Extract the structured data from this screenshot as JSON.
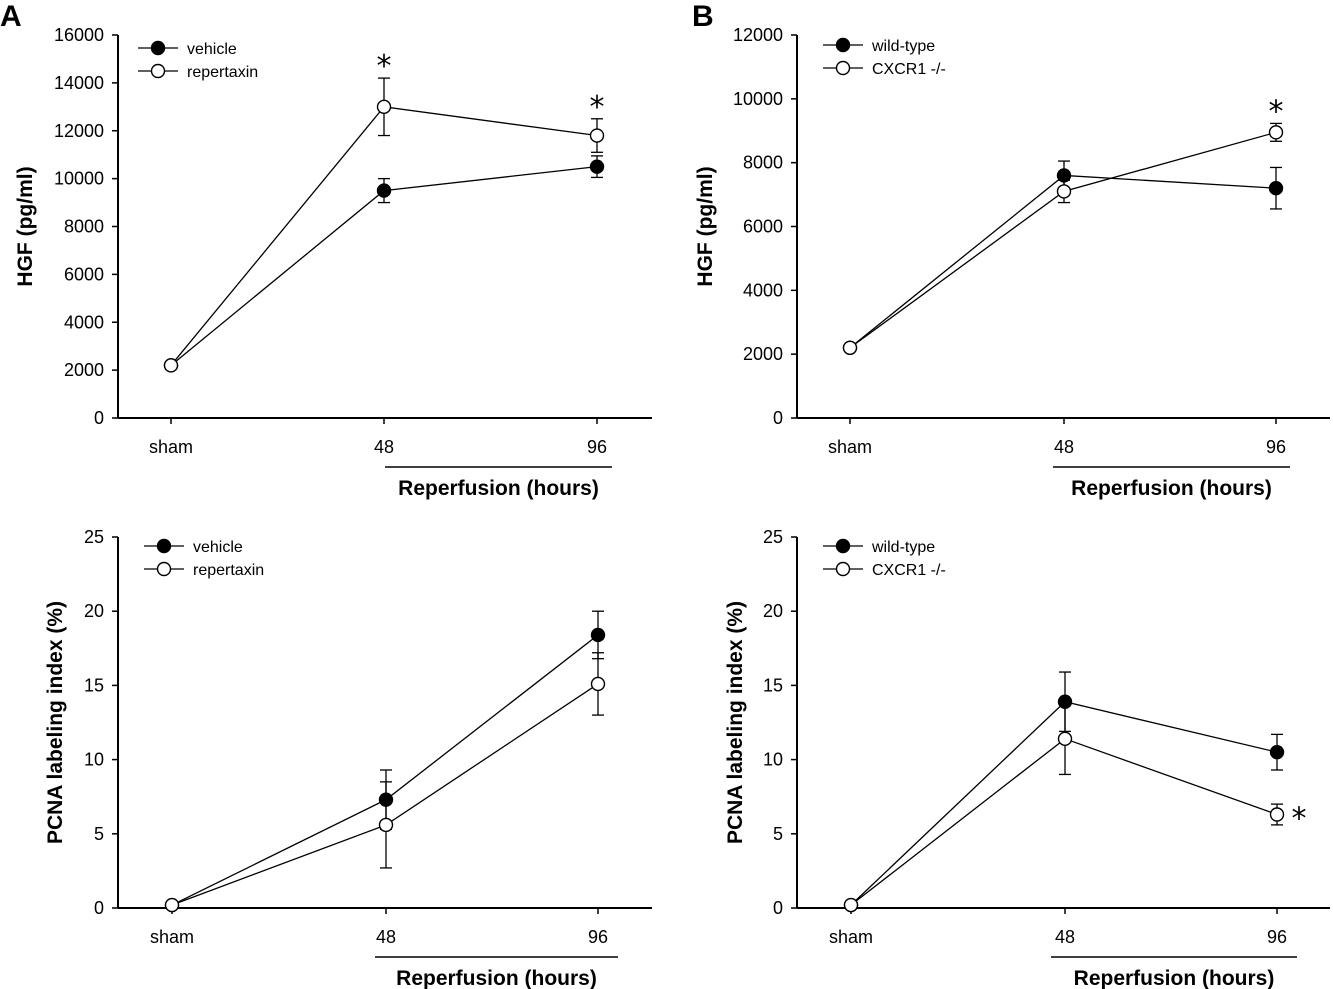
{
  "chart_data": [
    {
      "id": "A-top",
      "type": "line",
      "panel_label": "A",
      "categories": [
        "sham",
        "48",
        "96"
      ],
      "ylabel": "HGF (pg/ml)",
      "xgroup_label": "Reperfusion (hours)",
      "ylim": [
        0,
        16000
      ],
      "yticks": [
        0,
        2000,
        4000,
        6000,
        8000,
        10000,
        12000,
        14000,
        16000
      ],
      "series": [
        {
          "name": "vehicle",
          "marker": "filled",
          "values": [
            2200,
            9500,
            10500
          ],
          "errors": [
            0,
            500,
            450
          ]
        },
        {
          "name": "repertaxin",
          "marker": "open",
          "values": [
            2200,
            13000,
            11800
          ],
          "errors": [
            0,
            1200,
            700
          ]
        }
      ],
      "significance": [
        "",
        "*",
        "*"
      ]
    },
    {
      "id": "B-top",
      "type": "line",
      "panel_label": "B",
      "categories": [
        "sham",
        "48",
        "96"
      ],
      "ylabel": "HGF (pg/ml)",
      "xgroup_label": "Reperfusion (hours)",
      "ylim": [
        0,
        12000
      ],
      "yticks": [
        0,
        2000,
        4000,
        6000,
        8000,
        10000,
        12000
      ],
      "series": [
        {
          "name": "wild-type",
          "marker": "filled",
          "values": [
            2200,
            7600,
            7200
          ],
          "errors": [
            0,
            450,
            650
          ]
        },
        {
          "name": "CXCR1 -/-",
          "marker": "open",
          "values": [
            2200,
            7100,
            8950
          ],
          "errors": [
            0,
            350,
            280
          ]
        }
      ],
      "significance": [
        "",
        "",
        "*"
      ]
    },
    {
      "id": "A-bottom",
      "type": "line",
      "panel_label": "",
      "categories": [
        "sham",
        "48",
        "96"
      ],
      "ylabel": "PCNA labeling index (%)",
      "xgroup_label": "Reperfusion (hours)",
      "ylim": [
        0,
        25
      ],
      "yticks": [
        0,
        5,
        10,
        15,
        20,
        25
      ],
      "series": [
        {
          "name": "vehicle",
          "marker": "filled",
          "values": [
            0.2,
            7.3,
            18.4
          ],
          "errors": [
            0,
            2.0,
            1.6
          ]
        },
        {
          "name": "repertaxin",
          "marker": "open",
          "values": [
            0.2,
            5.6,
            15.1
          ],
          "errors": [
            0,
            2.9,
            2.1
          ]
        }
      ],
      "significance": [
        "",
        "",
        ""
      ]
    },
    {
      "id": "B-bottom",
      "type": "line",
      "panel_label": "",
      "categories": [
        "sham",
        "48",
        "96"
      ],
      "ylabel": "PCNA labeling index (%)",
      "xgroup_label": "Reperfusion (hours)",
      "ylim": [
        0,
        25
      ],
      "yticks": [
        0,
        5,
        10,
        15,
        20,
        25
      ],
      "series": [
        {
          "name": "wild-type",
          "marker": "filled",
          "values": [
            0.2,
            13.9,
            10.5
          ],
          "errors": [
            0,
            2.0,
            1.2
          ]
        },
        {
          "name": "CXCR1 -/-",
          "marker": "open",
          "values": [
            0.2,
            11.4,
            6.3
          ],
          "errors": [
            0,
            2.4,
            0.7
          ]
        }
      ],
      "significance": [
        "",
        "",
        "*"
      ]
    }
  ]
}
